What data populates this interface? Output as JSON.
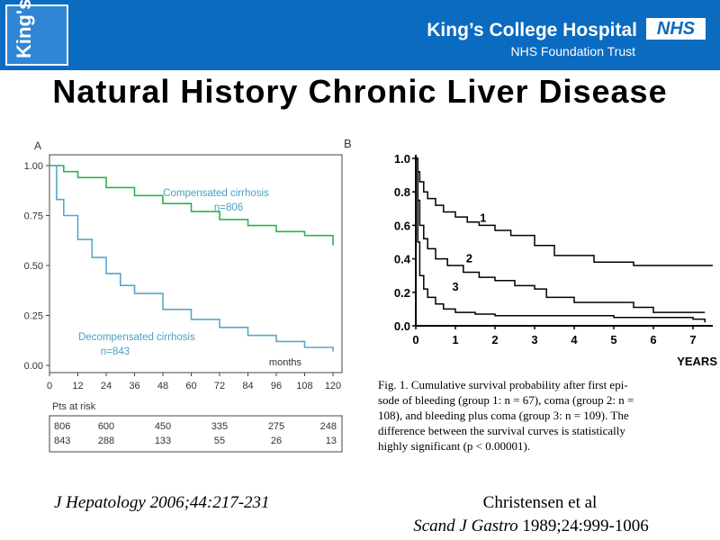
{
  "header": {
    "logo_text": "King's",
    "org_name": "King’s College Hospital",
    "nhs_badge": "NHS",
    "org_subtitle": "NHS Foundation Trust",
    "colors": {
      "banner": "#0a6bc0",
      "logo_box": "#2f86d4"
    }
  },
  "slide": {
    "title": "Natural History Chronic Liver Disease"
  },
  "references": {
    "left": "J Hepatology 2006;44:217-231",
    "right_authors": "Christensen et al",
    "right_journal": "Scand J Gastro",
    "right_citation": "1989;24:999-1006"
  },
  "chart_data": [
    {
      "type": "line",
      "panel_label": "A",
      "xlabel": "months",
      "x_ticks": [
        0,
        12,
        24,
        36,
        48,
        60,
        72,
        84,
        96,
        108,
        120
      ],
      "y_ticks": [
        "1.00",
        "0.75",
        "0.50",
        "0.25",
        "0.00"
      ],
      "xlim": [
        0,
        120
      ],
      "ylim": [
        0,
        1
      ],
      "series": [
        {
          "name": "Compensated cirrhosis",
          "label_line1": "Compensated cirrhosis",
          "label_line2": "n=806",
          "color": "#2bb24c",
          "x": [
            0,
            6,
            12,
            24,
            36,
            48,
            60,
            72,
            84,
            96,
            108,
            120
          ],
          "y": [
            1.0,
            0.97,
            0.94,
            0.89,
            0.85,
            0.81,
            0.77,
            0.73,
            0.7,
            0.67,
            0.65,
            0.6
          ]
        },
        {
          "name": "Decompensated cirrhosis",
          "label_line1": "Decompensated cirrhosis",
          "label_line2": "n=843",
          "color": "#5aa6c8",
          "x": [
            0,
            3,
            6,
            12,
            18,
            24,
            30,
            36,
            48,
            60,
            72,
            84,
            96,
            108,
            120
          ],
          "y": [
            1.0,
            0.83,
            0.75,
            0.63,
            0.54,
            0.46,
            0.4,
            0.36,
            0.28,
            0.23,
            0.19,
            0.15,
            0.12,
            0.09,
            0.07
          ]
        }
      ],
      "risk_table": {
        "heading": "Pts at risk",
        "rows": [
          [
            "806",
            "600",
            "450",
            "335",
            "275",
            "248"
          ],
          [
            "843",
            "288",
            "133",
            "55",
            "26",
            "13"
          ]
        ]
      }
    },
    {
      "type": "line",
      "panel_label": "B",
      "xlabel": "YEARS",
      "x_ticks": [
        0,
        1,
        2,
        3,
        4,
        5,
        6,
        7
      ],
      "y_ticks": [
        "1.0",
        "0.8",
        "0.6",
        "0.4",
        "0.2",
        "0.0"
      ],
      "xlim": [
        0,
        7.5
      ],
      "ylim": [
        0,
        1
      ],
      "series": [
        {
          "name": "1",
          "color": "#000000",
          "x": [
            0,
            0.05,
            0.1,
            0.2,
            0.3,
            0.5,
            0.7,
            1.0,
            1.3,
            1.6,
            2.0,
            2.4,
            3.0,
            3.5,
            4.5,
            5.5,
            6.5,
            7.5
          ],
          "y": [
            1.0,
            0.92,
            0.86,
            0.8,
            0.76,
            0.72,
            0.68,
            0.65,
            0.62,
            0.6,
            0.57,
            0.54,
            0.48,
            0.42,
            0.38,
            0.36,
            0.36,
            0.36
          ]
        },
        {
          "name": "2",
          "color": "#000000",
          "x": [
            0,
            0.05,
            0.1,
            0.2,
            0.3,
            0.5,
            0.8,
            1.2,
            1.6,
            2.0,
            2.5,
            3.0,
            3.3,
            4.0,
            5.5,
            6.0,
            7.3
          ],
          "y": [
            1.0,
            0.75,
            0.6,
            0.52,
            0.46,
            0.4,
            0.36,
            0.32,
            0.29,
            0.27,
            0.24,
            0.22,
            0.17,
            0.14,
            0.11,
            0.08,
            0.08
          ]
        },
        {
          "name": "3",
          "color": "#000000",
          "x": [
            0,
            0.05,
            0.1,
            0.2,
            0.3,
            0.5,
            0.7,
            1.0,
            1.5,
            2.0,
            3.0,
            4.0,
            5.0,
            7.0,
            7.3
          ],
          "y": [
            1.0,
            0.5,
            0.3,
            0.22,
            0.17,
            0.13,
            0.1,
            0.08,
            0.07,
            0.06,
            0.06,
            0.06,
            0.05,
            0.04,
            0.02
          ]
        }
      ],
      "caption_lines": [
        "Fig. 1. Cumulative survival probability after first epi-",
        "sode of bleeding (group 1: n = 67), coma (group 2: n =",
        "108), and bleeding plus coma (group 3: n = 109). The",
        "difference between the survival curves is statistically",
        "highly significant (p < 0.00001)."
      ]
    }
  ]
}
